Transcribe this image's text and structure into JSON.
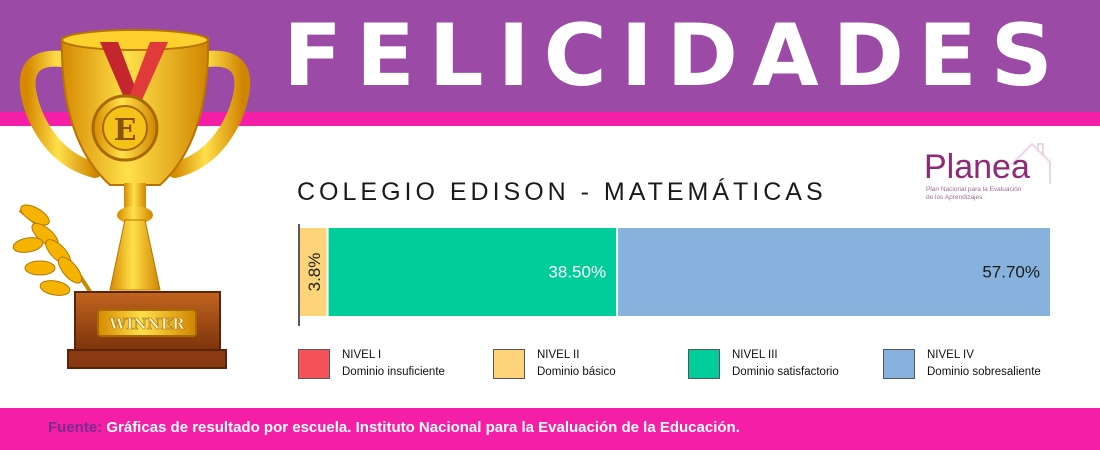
{
  "header": {
    "title": "FELICIDADES",
    "band_color": "#9b4aa5",
    "accent_color": "#f41fa6"
  },
  "trophy": {
    "icon": "winner-trophy-icon",
    "medal_letter": "E",
    "plate_text": "WINNER"
  },
  "logo": {
    "name": "Planea",
    "subtitle_line1": "Plan Nacional para la Evaluación",
    "subtitle_line2": "de los Aprendizajes"
  },
  "chart_data": {
    "type": "bar",
    "orientation": "horizontal",
    "stacked": true,
    "title": "COLEGIO EDISON - MATEMÁTICAS",
    "categories": [
      "COLEGIO EDISON"
    ],
    "series": [
      {
        "name": "NIVEL I",
        "description": "Dominio insuficiente",
        "value": 0,
        "label": "",
        "color": "#f5535a"
      },
      {
        "name": "NIVEL II",
        "description": "Dominio básico",
        "value": 3.8,
        "label": "3.8%",
        "color": "#fdd47a",
        "label_color": "#222222"
      },
      {
        "name": "NIVEL III",
        "description": "Dominio satisfactorio",
        "value": 38.5,
        "label": "38.50%",
        "color": "#00cc99",
        "label_color": "#ffffff"
      },
      {
        "name": "NIVEL IV",
        "description": "Dominio sobresaliente",
        "value": 57.7,
        "label": "57.70%",
        "color": "#86b2dd",
        "label_color": "#1a1a1a"
      }
    ],
    "xlim": [
      0,
      100
    ],
    "grid": false,
    "legend_position": "bottom"
  },
  "footer": {
    "label": "Fuente:",
    "source": "Gráficas de resultado por escuela. Instituto Nacional para la Evaluación de la Educación."
  }
}
